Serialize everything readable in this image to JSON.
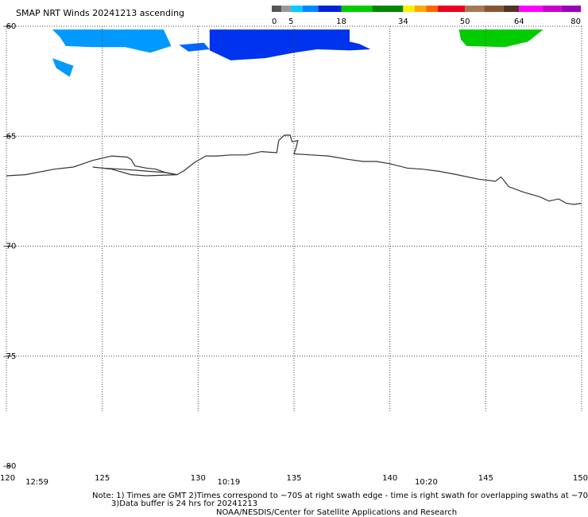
{
  "title": "SMAP NRT Winds 20241213 ascending",
  "legend": {
    "labels": [
      "0",
      "5",
      "18",
      "34",
      "50",
      "64",
      "80"
    ],
    "segments": [
      {
        "from": 0,
        "to": 2.5,
        "color": "#555555"
      },
      {
        "from": 2.5,
        "to": 5,
        "color": "#999999"
      },
      {
        "from": 5,
        "to": 8,
        "color": "#00ccff"
      },
      {
        "from": 8,
        "to": 12,
        "color": "#0088ff"
      },
      {
        "from": 12,
        "to": 18,
        "color": "#0022dd"
      },
      {
        "from": 18,
        "to": 26,
        "color": "#00cc00"
      },
      {
        "from": 26,
        "to": 34,
        "color": "#008800"
      },
      {
        "from": 34,
        "to": 37,
        "color": "#ffee00"
      },
      {
        "from": 37,
        "to": 40,
        "color": "#ffaa00"
      },
      {
        "from": 40,
        "to": 43,
        "color": "#ff6600"
      },
      {
        "from": 43,
        "to": 50,
        "color": "#ee0022"
      },
      {
        "from": 50,
        "to": 55,
        "color": "#aa7755"
      },
      {
        "from": 55,
        "to": 60,
        "color": "#885533"
      },
      {
        "from": 60,
        "to": 64,
        "color": "#553322"
      },
      {
        "from": 64,
        "to": 70,
        "color": "#ff00ff"
      },
      {
        "from": 70,
        "to": 75,
        "color": "#cc00cc"
      },
      {
        "from": 75,
        "to": 80,
        "color": "#9900bb"
      }
    ]
  },
  "map": {
    "lon_ticks": [
      120,
      125,
      130,
      135,
      140,
      145,
      150
    ],
    "lat_ticks": [
      -60,
      -65,
      -70,
      -75,
      -80
    ],
    "lon_labels": [
      "120",
      "125",
      "130",
      "135",
      "140",
      "145",
      "150"
    ],
    "lat_labels": [
      "-60",
      "-65",
      "-70",
      "-75",
      "-80"
    ],
    "lon_range": [
      120,
      150
    ],
    "lat_range": [
      -60,
      -80
    ],
    "grid": true,
    "times": [
      {
        "lon": 121,
        "label": "12:59"
      },
      {
        "lon": 131,
        "label": "10:19"
      },
      {
        "lon": 141.3,
        "label": "10:20"
      }
    ],
    "wind_patches": [
      {
        "color": "#0099ff",
        "points": [
          [
            122.4,
            -60.15
          ],
          [
            128.2,
            -60.15
          ],
          [
            128.6,
            -60.9
          ],
          [
            127.5,
            -61.2
          ],
          [
            126.2,
            -60.95
          ],
          [
            124.5,
            -60.95
          ],
          [
            123.1,
            -60.9
          ],
          [
            122.8,
            -60.5
          ]
        ]
      },
      {
        "color": "#0099ff",
        "points": [
          [
            122.4,
            -61.45
          ],
          [
            123.5,
            -61.8
          ],
          [
            123.3,
            -62.3
          ],
          [
            122.6,
            -61.9
          ]
        ]
      },
      {
        "color": "#0066ff",
        "points": [
          [
            129.0,
            -60.85
          ],
          [
            130.3,
            -60.75
          ],
          [
            130.6,
            -61.05
          ],
          [
            129.5,
            -61.15
          ]
        ]
      },
      {
        "color": "#0033ee",
        "points": [
          [
            130.6,
            -60.15
          ],
          [
            137.9,
            -60.15
          ],
          [
            137.9,
            -60.7
          ],
          [
            138.4,
            -60.8
          ],
          [
            139.0,
            -61.05
          ],
          [
            137.9,
            -61.1
          ],
          [
            136.2,
            -61.05
          ],
          [
            135.0,
            -61.2
          ],
          [
            133.5,
            -61.45
          ],
          [
            131.7,
            -61.55
          ],
          [
            130.6,
            -61.1
          ]
        ]
      },
      {
        "color": "#00cc00",
        "points": [
          [
            143.6,
            -60.15
          ],
          [
            148.0,
            -60.15
          ],
          [
            147.2,
            -60.7
          ],
          [
            146.0,
            -60.95
          ],
          [
            144.0,
            -60.9
          ],
          [
            143.7,
            -60.6
          ]
        ]
      }
    ],
    "coastline": [
      [
        120.0,
        -66.8
      ],
      [
        121.0,
        -66.75
      ],
      [
        122.5,
        -66.5
      ],
      [
        123.5,
        -66.4
      ],
      [
        124.5,
        -66.1
      ],
      [
        125.5,
        -65.9
      ],
      [
        126.3,
        -65.95
      ],
      [
        126.5,
        -66.05
      ],
      [
        126.7,
        -66.35
      ],
      [
        127.3,
        -66.45
      ],
      [
        127.8,
        -66.5
      ],
      [
        128.3,
        -66.65
      ],
      [
        128.9,
        -66.75
      ],
      [
        129.3,
        -66.55
      ],
      [
        129.8,
        -66.2
      ],
      [
        130.4,
        -65.9
      ],
      [
        131.0,
        -65.9
      ],
      [
        131.7,
        -65.85
      ],
      [
        132.5,
        -65.85
      ],
      [
        133.3,
        -65.7
      ],
      [
        134.1,
        -65.75
      ],
      [
        134.2,
        -65.2
      ],
      [
        134.5,
        -64.95
      ],
      [
        134.8,
        -64.95
      ],
      [
        134.9,
        -65.25
      ],
      [
        135.2,
        -65.2
      ],
      [
        135.1,
        -65.55
      ],
      [
        135.0,
        -65.8
      ],
      [
        135.9,
        -65.85
      ],
      [
        136.8,
        -65.9
      ],
      [
        137.8,
        -66.05
      ],
      [
        138.6,
        -66.15
      ],
      [
        139.3,
        -66.15
      ],
      [
        140.0,
        -66.25
      ],
      [
        140.9,
        -66.45
      ],
      [
        141.7,
        -66.5
      ],
      [
        142.6,
        -66.6
      ],
      [
        143.5,
        -66.75
      ],
      [
        144.6,
        -66.95
      ],
      [
        145.5,
        -67.05
      ],
      [
        145.8,
        -66.85
      ],
      [
        146.2,
        -67.3
      ],
      [
        147.0,
        -67.55
      ],
      [
        147.8,
        -67.75
      ],
      [
        148.3,
        -67.95
      ],
      [
        148.8,
        -67.85
      ],
      [
        149.2,
        -68.05
      ],
      [
        149.6,
        -68.1
      ],
      [
        150.0,
        -68.05
      ]
    ],
    "ice_inlet": [
      [
        124.5,
        -66.4
      ],
      [
        125.5,
        -66.5
      ],
      [
        126.5,
        -66.75
      ],
      [
        127.3,
        -66.8
      ],
      [
        128.9,
        -66.75
      ],
      [
        128.3,
        -66.65
      ],
      [
        127.5,
        -66.6
      ],
      [
        126.8,
        -66.55
      ],
      [
        126.0,
        -66.5
      ],
      [
        125.0,
        -66.45
      ]
    ]
  },
  "notes": {
    "line1": "Note: 1) Times are GMT 2)Times correspond to ~70S at right swath edge - time is right swath for overlapping swaths at ~70S",
    "line2": "3)Data buffer is 24 hrs for 20241213",
    "credit": "NOAA/NESDIS/Center for Satellite Applications and Research"
  }
}
